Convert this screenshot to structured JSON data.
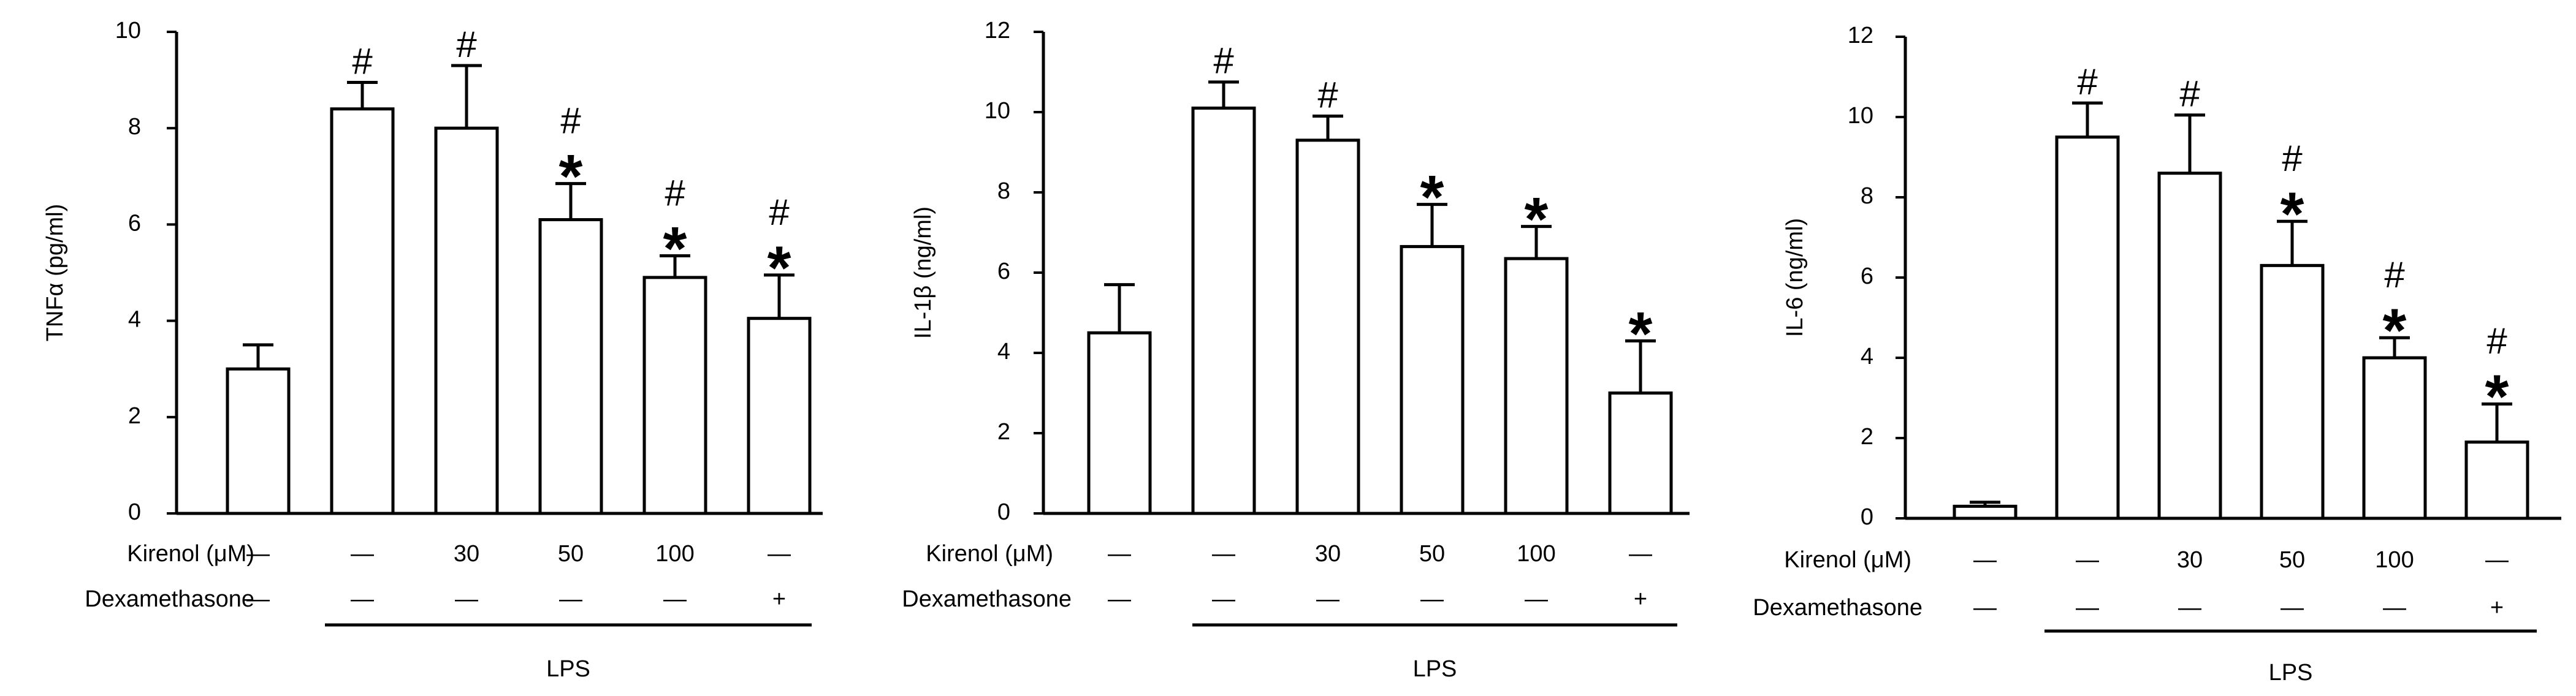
{
  "chart_data": [
    {
      "type": "bar",
      "ylabel": "TNFα (pg/ml)",
      "ylim": [
        0,
        10
      ],
      "yticks": [
        "0",
        "2",
        "4",
        "6",
        "8",
        "10"
      ],
      "values": [
        3.0,
        8.4,
        8.0,
        6.1,
        4.9,
        4.05
      ],
      "errors": [
        0.5,
        0.55,
        1.3,
        0.75,
        0.45,
        0.9
      ],
      "hash": [
        false,
        true,
        true,
        true,
        true,
        true
      ],
      "star": [
        false,
        false,
        false,
        true,
        true,
        true
      ],
      "kirenol_label": "Kirenol (μM)",
      "kirenol": [
        "—",
        "—",
        "30",
        "50",
        "100",
        "—"
      ],
      "dex_label": "Dexamethasone",
      "dex": [
        "—",
        "—",
        "—",
        "—",
        "—",
        "+"
      ],
      "lps_label": "LPS"
    },
    {
      "type": "bar",
      "ylabel": "IL-1β (ng/ml)",
      "ylim": [
        0,
        12
      ],
      "yticks": [
        "0",
        "2",
        "4",
        "6",
        "8",
        "10",
        "12"
      ],
      "values": [
        4.5,
        10.1,
        9.3,
        6.65,
        6.35,
        3.0
      ],
      "errors": [
        1.2,
        0.65,
        0.6,
        1.05,
        0.8,
        1.3
      ],
      "hash": [
        false,
        true,
        true,
        false,
        false,
        false
      ],
      "star": [
        false,
        false,
        false,
        true,
        true,
        true
      ],
      "kirenol_label": "Kirenol (μM)",
      "kirenol": [
        "—",
        "—",
        "30",
        "50",
        "100",
        "—"
      ],
      "dex_label": "Dexamethasone",
      "dex": [
        "—",
        "—",
        "—",
        "—",
        "—",
        "+"
      ],
      "lps_label": "LPS"
    },
    {
      "type": "bar",
      "ylabel": "IL-6 (ng/ml)",
      "ylim": [
        0,
        12
      ],
      "yticks": [
        "0",
        "2",
        "4",
        "6",
        "8",
        "10",
        "12"
      ],
      "values": [
        0.3,
        9.5,
        8.6,
        6.3,
        4.0,
        1.9
      ],
      "errors": [
        0.1,
        0.85,
        1.45,
        1.1,
        0.5,
        0.95
      ],
      "hash": [
        false,
        true,
        true,
        true,
        true,
        true
      ],
      "star": [
        false,
        false,
        false,
        true,
        true,
        true
      ],
      "kirenol_label": "Kirenol (μM)",
      "kirenol": [
        "—",
        "—",
        "30",
        "50",
        "100",
        "—"
      ],
      "dex_label": "Dexamethasone",
      "dex": [
        "—",
        "—",
        "—",
        "—",
        "—",
        "+"
      ],
      "lps_label": "LPS"
    }
  ],
  "marks": {
    "hash": "#",
    "star": "*"
  }
}
